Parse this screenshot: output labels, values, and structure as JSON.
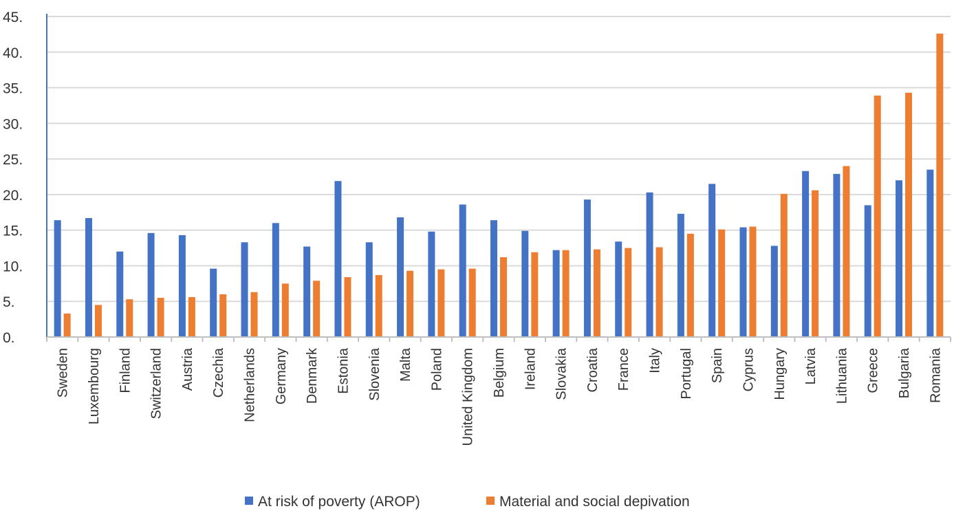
{
  "chart_data": {
    "type": "bar",
    "title": "",
    "xlabel": "",
    "ylabel": "",
    "ylim": [
      0,
      45
    ],
    "ytick_step": 5,
    "ytick_labels": [
      "0.",
      "5.",
      "10.",
      "15.",
      "20.",
      "25.",
      "30.",
      "35.",
      "40.",
      "45."
    ],
    "grid": true,
    "legend_position": "bottom",
    "categories": [
      "Sweden",
      "Luxembourg",
      "Finland",
      "Switzerland",
      "Austria",
      "Czechia",
      "Netherlands",
      "Germany",
      "Denmark",
      "Estonia",
      "Slovenia",
      "Malta",
      "Poland",
      "United Kingdom",
      "Belgium",
      "Ireland",
      "Slovakia",
      "Croatia",
      "France",
      "Italy",
      "Portugal",
      "Spain",
      "Cyprus",
      "Hungary",
      "Latvia",
      "Lithuania",
      "Greece",
      "Bulgaria",
      "Romania"
    ],
    "series": [
      {
        "name": "At risk of poverty (AROP)",
        "color": "#4472c4",
        "values": [
          16.4,
          16.7,
          12.0,
          14.6,
          14.3,
          9.6,
          13.3,
          16.0,
          12.7,
          21.9,
          13.3,
          16.8,
          14.8,
          18.6,
          16.4,
          14.9,
          12.2,
          19.3,
          13.4,
          20.3,
          17.3,
          21.5,
          15.4,
          12.8,
          23.3,
          22.9,
          18.5,
          22.0,
          23.5
        ]
      },
      {
        "name": "Material and social depivation",
        "color": "#ed7d31",
        "values": [
          3.3,
          4.5,
          5.3,
          5.5,
          5.6,
          6.0,
          6.3,
          7.5,
          7.9,
          8.4,
          8.7,
          9.3,
          9.5,
          9.6,
          11.2,
          11.9,
          12.2,
          12.3,
          12.5,
          12.6,
          14.5,
          15.1,
          15.5,
          20.1,
          20.6,
          24.0,
          33.9,
          34.3,
          42.6
        ]
      }
    ]
  }
}
